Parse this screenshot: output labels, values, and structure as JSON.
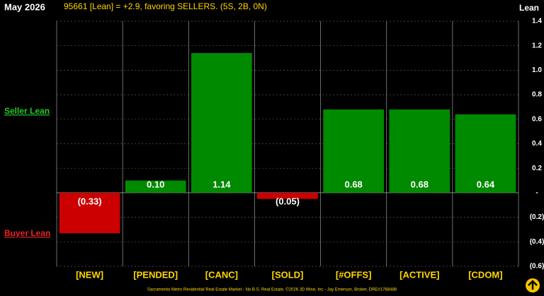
{
  "chart_data": {
    "type": "bar",
    "title": "May 2026",
    "subtitle": "95661 [Lean] = +2.9, favoring SELLERS. (5S, 2B, 0N)",
    "y_axis_label": "Lean",
    "annotations": [
      "Seller Lean",
      "Buyer Lean"
    ],
    "footer": "Sacramento Metro Residential Real Estate Market - No B.S. Real Estate, ©2026 JD Wise, Inc - Jay Emerson, Broker, DRE#1788488",
    "categories": [
      "[NEW]",
      "[PENDED]",
      "[CANC]",
      "[SOLD]",
      "[#OFFS]",
      "[ACTIVE]",
      "[CDOM]"
    ],
    "values": [
      -0.33,
      0.1,
      1.14,
      -0.05,
      0.68,
      0.68,
      0.64
    ],
    "value_labels": [
      "(0.33)",
      "0.10",
      "1.14",
      "(0.05)",
      "0.68",
      "0.68",
      "0.64"
    ],
    "positive_color": "#008a00",
    "negative_color": "#cc0000",
    "ylim": [
      -0.6,
      1.4
    ],
    "yticks": [
      {
        "value": -0.6,
        "label": "(0.6)"
      },
      {
        "value": -0.4,
        "label": "(0.4)"
      },
      {
        "value": -0.2,
        "label": "(0.2)"
      },
      {
        "value": 0,
        "label": "-"
      },
      0.2,
      0.4,
      0.6,
      0.8,
      {
        "value": 1.0,
        "label": "1.0"
      },
      1.2,
      1.4
    ],
    "grid": true
  }
}
